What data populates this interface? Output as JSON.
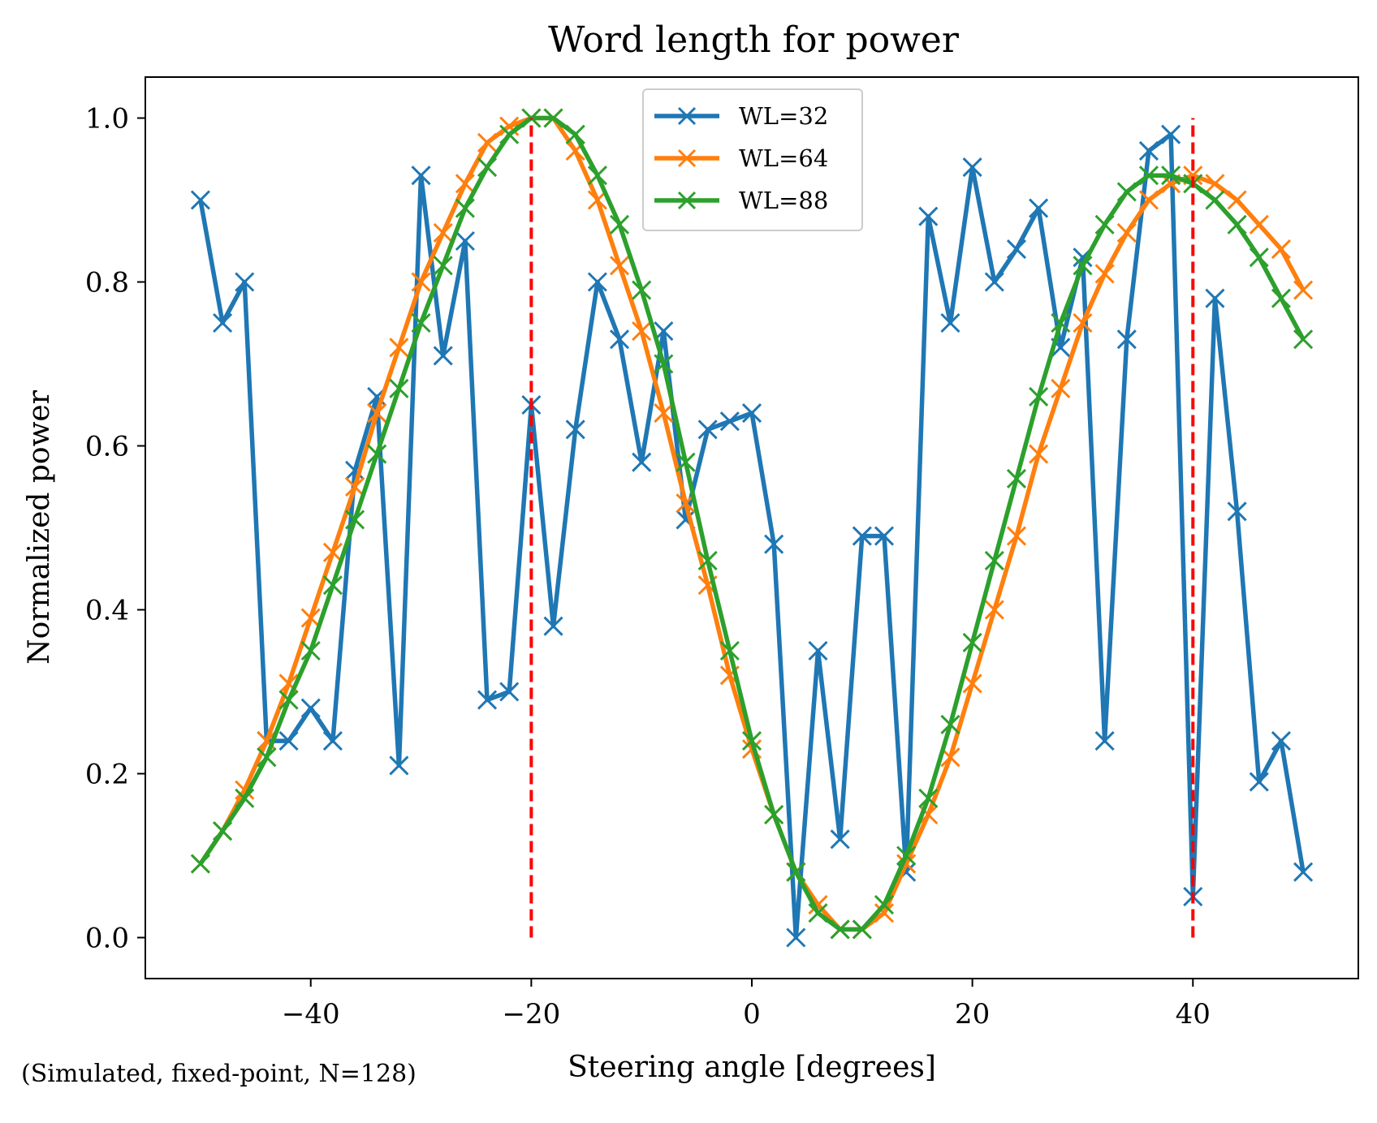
{
  "footnote": "(Simulated, fixed-point, N=128)",
  "chart_data": {
    "type": "line",
    "title": "Word length for power",
    "xlabel": "Steering angle [degrees]",
    "ylabel": "Normalized power",
    "xlim": [
      -55,
      55
    ],
    "ylim": [
      -0.05,
      1.05
    ],
    "xticks": [
      -40,
      -20,
      0,
      20,
      40
    ],
    "xtick_labels": [
      "−40",
      "−20",
      "0",
      "20",
      "40"
    ],
    "yticks": [
      0.0,
      0.2,
      0.4,
      0.6,
      0.8,
      1.0
    ],
    "ytick_labels": [
      "0.0",
      "0.2",
      "0.4",
      "0.6",
      "0.8",
      "1.0"
    ],
    "grid": false,
    "legend_position": "top-center",
    "marker": "x",
    "x": [
      -50,
      -48,
      -46,
      -44,
      -42,
      -40,
      -38,
      -36,
      -34,
      -32,
      -30,
      -28,
      -26,
      -24,
      -22,
      -20,
      -18,
      -16,
      -14,
      -12,
      -10,
      -8,
      -6,
      -4,
      -2,
      0,
      2,
      4,
      6,
      8,
      10,
      12,
      14,
      16,
      18,
      20,
      22,
      24,
      26,
      28,
      30,
      32,
      34,
      36,
      38,
      40,
      42,
      44,
      46,
      48,
      50
    ],
    "series": [
      {
        "name": "WL=32",
        "color": "#1f77b4",
        "values": [
          0.9,
          0.75,
          0.8,
          0.24,
          0.24,
          0.28,
          0.24,
          0.57,
          0.66,
          0.21,
          0.93,
          0.71,
          0.85,
          0.29,
          0.3,
          0.65,
          0.38,
          0.62,
          0.8,
          0.73,
          0.58,
          0.74,
          0.51,
          0.62,
          0.63,
          0.64,
          0.48,
          0.0,
          0.35,
          0.12,
          0.49,
          0.49,
          0.08,
          0.88,
          0.75,
          0.94,
          0.8,
          0.84,
          0.89,
          0.72,
          0.83,
          0.24,
          0.73,
          0.96,
          0.98,
          0.05,
          0.78,
          0.52,
          0.19,
          0.24,
          0.08
        ]
      },
      {
        "name": "WL=64",
        "color": "#ff7f0e",
        "values": [
          0.09,
          0.13,
          0.18,
          0.24,
          0.31,
          0.39,
          0.47,
          0.55,
          0.64,
          0.72,
          0.8,
          0.86,
          0.92,
          0.97,
          0.99,
          1.0,
          1.0,
          0.96,
          0.9,
          0.82,
          0.74,
          0.64,
          0.53,
          0.43,
          0.32,
          0.23,
          0.15,
          0.08,
          0.04,
          0.01,
          0.01,
          0.03,
          0.09,
          0.15,
          0.22,
          0.31,
          0.4,
          0.49,
          0.59,
          0.67,
          0.75,
          0.81,
          0.86,
          0.9,
          0.92,
          0.93,
          0.92,
          0.9,
          0.87,
          0.84,
          0.79
        ]
      },
      {
        "name": "WL=88",
        "color": "#2ca02c",
        "values": [
          0.09,
          0.13,
          0.17,
          0.22,
          0.29,
          0.35,
          0.43,
          0.51,
          0.59,
          0.67,
          0.75,
          0.82,
          0.89,
          0.94,
          0.98,
          1.0,
          1.0,
          0.98,
          0.93,
          0.87,
          0.79,
          0.7,
          0.58,
          0.46,
          0.35,
          0.24,
          0.15,
          0.08,
          0.03,
          0.01,
          0.01,
          0.04,
          0.1,
          0.17,
          0.26,
          0.36,
          0.46,
          0.56,
          0.66,
          0.75,
          0.82,
          0.87,
          0.91,
          0.93,
          0.93,
          0.92,
          0.9,
          0.87,
          0.83,
          0.78,
          0.73
        ]
      }
    ],
    "reference_lines": [
      {
        "x": -20,
        "ymin": 0.0,
        "ymax": 1.0,
        "color": "#ff0000",
        "style": "dashed"
      },
      {
        "x": 40,
        "ymin": 0.0,
        "ymax": 1.0,
        "color": "#ff0000",
        "style": "dashed"
      }
    ]
  }
}
